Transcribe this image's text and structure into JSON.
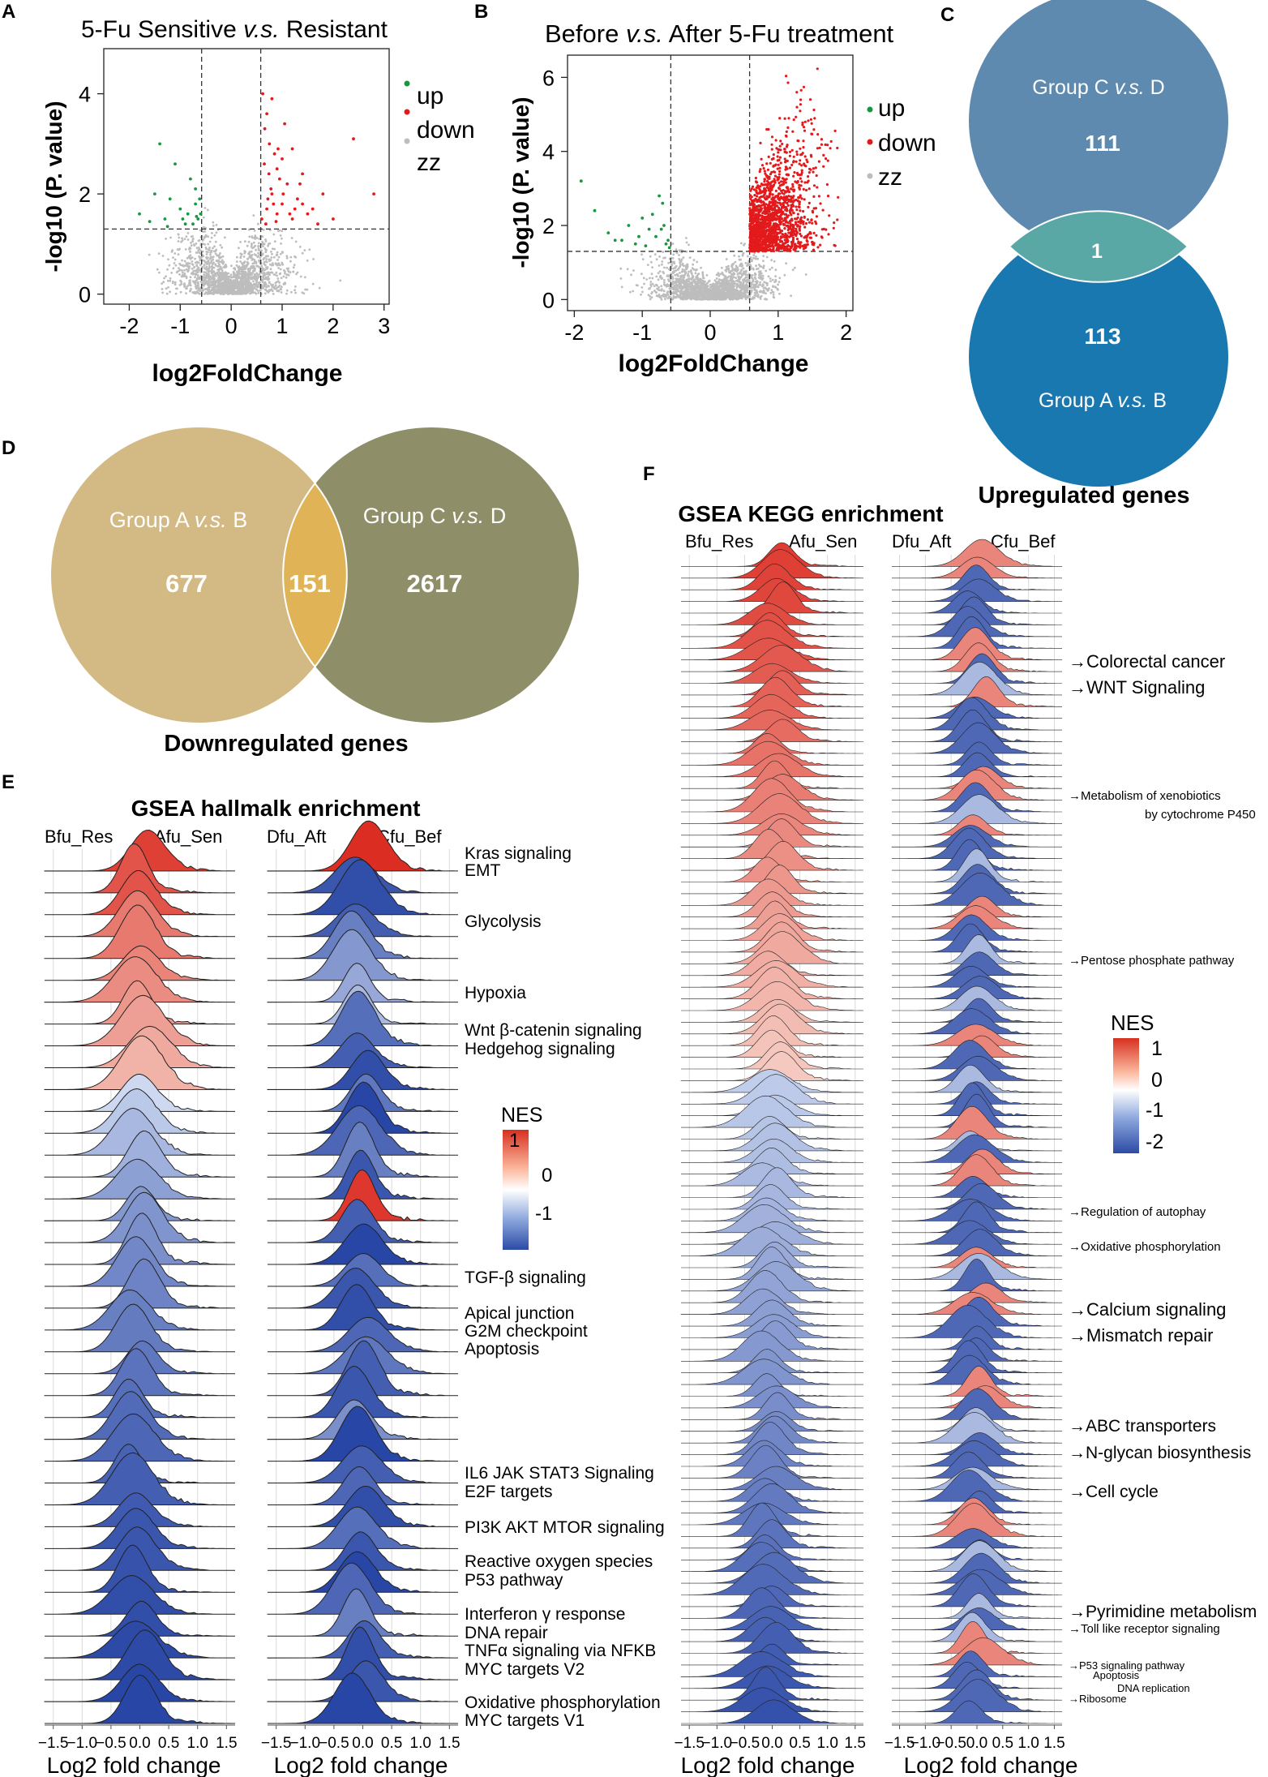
{
  "panel_labels": [
    "A",
    "B",
    "C",
    "D",
    "E",
    "F"
  ],
  "chart_data": [
    {
      "id": "A",
      "type": "scatter",
      "subtype": "volcano",
      "title": "5-Fu  Sensitive v.s. Resistant",
      "title_parts": [
        "5-Fu  Sensitive ",
        "v.s.",
        " Resistant"
      ],
      "xlabel": "log2FoldChange",
      "ylabel": "-log10 (P. value)",
      "xlim": [
        -2.5,
        3.1
      ],
      "ylim": [
        -0.2,
        4.9
      ],
      "xticks": [
        "-2",
        "-1",
        "0",
        "1",
        "2",
        "3"
      ],
      "xtick_values": [
        -2,
        -1,
        0,
        1,
        2,
        3
      ],
      "yticks": [
        "0",
        "2",
        "4"
      ],
      "ytick_values": [
        0,
        2,
        4
      ],
      "fc_thresholds": [
        -0.58,
        0.58
      ],
      "p_threshold": 1.3,
      "legend": [
        {
          "label": "up",
          "color": "#1a9641"
        },
        {
          "label": "down",
          "color": "#e31a1c"
        },
        {
          "label": "zz",
          "color": "#bdbdbd"
        }
      ],
      "series": [
        {
          "name": "up",
          "color": "#1a9641",
          "x": [
            -1.8,
            -1.5,
            -1.3,
            -1.2,
            -1.0,
            -0.9,
            -0.8,
            -0.7,
            -0.65,
            -0.6,
            -1.4,
            -1.1,
            -0.75,
            -0.95,
            -0.62,
            -1.6,
            -0.85,
            -0.7,
            -1.25,
            -0.68
          ],
          "y": [
            1.6,
            2.0,
            1.5,
            1.9,
            1.7,
            1.4,
            2.3,
            1.8,
            1.5,
            1.6,
            3.0,
            2.6,
            1.4,
            1.5,
            1.9,
            1.45,
            1.6,
            2.1,
            1.35,
            1.55
          ]
        },
        {
          "name": "down",
          "color": "#e31a1c",
          "x": [
            0.6,
            0.7,
            0.8,
            0.9,
            1.0,
            1.1,
            1.2,
            1.3,
            1.4,
            1.5,
            0.65,
            0.75,
            0.85,
            0.95,
            1.05,
            1.6,
            1.8,
            2.0,
            0.7,
            0.8,
            0.9,
            1.0,
            1.2,
            1.4,
            0.62,
            0.68,
            0.72,
            0.78,
            0.88,
            1.15,
            1.35,
            1.7,
            2.4,
            2.8,
            0.66,
            0.74,
            0.83,
            0.92,
            1.02,
            1.25
          ],
          "y": [
            1.5,
            1.7,
            2.0,
            1.6,
            1.8,
            2.2,
            1.5,
            1.9,
            2.4,
            1.6,
            2.6,
            3.0,
            2.8,
            2.3,
            3.4,
            1.7,
            2.0,
            1.5,
            3.6,
            3.9,
            2.5,
            2.7,
            2.9,
            1.8,
            4.0,
            1.4,
            1.9,
            2.1,
            1.45,
            1.6,
            2.2,
            1.4,
            3.1,
            2.0,
            3.3,
            2.4,
            1.8,
            2.9,
            2.0,
            1.7
          ]
        },
        {
          "name": "zz",
          "color": "#bdbdbd",
          "count": 1800
        }
      ]
    },
    {
      "id": "B",
      "type": "scatter",
      "subtype": "volcano",
      "title": "Before v.s. After 5-Fu treatment",
      "title_parts": [
        "Before ",
        "v.s.",
        " After 5-Fu treatment"
      ],
      "xlabel": "log2FoldChange",
      "ylabel": "-log10 (P. value)",
      "xlim": [
        -2.1,
        2.1
      ],
      "ylim": [
        -0.3,
        6.6
      ],
      "xticks": [
        "-2",
        "-1",
        "0",
        "1",
        "2"
      ],
      "xtick_values": [
        -2,
        -1,
        0,
        1,
        2
      ],
      "yticks": [
        "0",
        "2",
        "4",
        "6"
      ],
      "ytick_values": [
        0,
        2,
        4,
        6
      ],
      "fc_thresholds": [
        -0.58,
        0.58
      ],
      "p_threshold": 1.3,
      "legend": [
        {
          "label": "up",
          "color": "#1a9641"
        },
        {
          "label": "down",
          "color": "#e31a1c"
        },
        {
          "label": "zz",
          "color": "#bdbdbd"
        }
      ],
      "series": [
        {
          "name": "up",
          "color": "#1a9641",
          "x": [
            -1.9,
            -1.7,
            -1.5,
            -1.3,
            -1.2,
            -1.1,
            -1.0,
            -0.9,
            -0.8,
            -0.7,
            -0.65,
            -0.6,
            -1.4,
            -0.75,
            -0.85,
            -0.95,
            -1.05,
            -0.68,
            -0.62,
            -0.72
          ],
          "y": [
            3.2,
            2.4,
            1.8,
            1.6,
            2.0,
            1.5,
            2.2,
            1.9,
            1.7,
            2.6,
            1.5,
            1.4,
            1.6,
            2.8,
            2.3,
            1.45,
            1.7,
            2.0,
            1.6,
            1.9
          ]
        },
        {
          "name": "down",
          "color": "#e31a1c",
          "count": 1500
        },
        {
          "name": "zz",
          "color": "#bdbdbd",
          "count": 2000
        }
      ]
    },
    {
      "id": "C",
      "type": "venn",
      "title": "Upregulated genes",
      "sets": [
        {
          "label_parts": [
            "Group C ",
            "v.s.",
            " D"
          ],
          "value": "111",
          "color": "#5f8aaf"
        },
        {
          "label_parts": [
            "Group A ",
            "v.s.",
            " B"
          ],
          "value": "113",
          "color": "#1a78b0"
        }
      ],
      "intersection": {
        "value": "1",
        "color": "#5aa8a5"
      }
    },
    {
      "id": "D",
      "type": "venn",
      "title": "Downregulated genes",
      "sets": [
        {
          "label_parts": [
            "Group A ",
            "v.s.",
            " B"
          ],
          "value": "677",
          "color": "#d3b983"
        },
        {
          "label_parts": [
            "Group C ",
            "v.s.",
            " D"
          ],
          "value": "2617",
          "color": "#8e8f68"
        }
      ],
      "intersection": {
        "value": "151",
        "color": "#e0b356"
      }
    },
    {
      "id": "E",
      "type": "ridgeline",
      "title": "GSEA hallmalk enrichment",
      "xlabel": "Log2 fold change",
      "xticks": [
        "−1.5",
        "−1.0",
        "−0.5",
        "0.0",
        "0.5",
        "1.0",
        "1.5"
      ],
      "xtick_values": [
        -1.5,
        -1.0,
        -0.5,
        0.0,
        0.5,
        1.0,
        1.5
      ],
      "columns": [
        {
          "left_label": "Bfu_Res",
          "right_label": "Afu_Sen",
          "nes": [
            0.9,
            0.8,
            0.8,
            0.6,
            0.6,
            0.55,
            0.5,
            0.45,
            0.4,
            0.35,
            0.3,
            -0.1,
            -0.3,
            -0.5,
            -0.6,
            -0.8,
            -0.9,
            -0.95,
            -1.0,
            -1.1,
            -1.15,
            -1.2,
            -1.25,
            -1.3,
            -1.35,
            -1.4,
            -1.45,
            -1.5,
            -1.55,
            -1.6,
            -1.65,
            -1.7,
            -1.7,
            -1.75,
            -1.8,
            -1.8,
            -1.85,
            -1.85,
            -1.9,
            -1.9
          ]
        },
        {
          "left_label": "Dfu_Aft",
          "right_label": "Cfu_Bef",
          "nes": [
            1.0,
            -1.7,
            -1.8,
            -1.6,
            -1.2,
            -0.9,
            -0.7,
            -0.5,
            -1.4,
            -1.6,
            -1.8,
            -1.3,
            -1.9,
            -1.5,
            -1.2,
            -1.7,
            0.95,
            -1.6,
            -1.9,
            -1.4,
            -1.7,
            -1.8,
            -1.5,
            -1.3,
            -1.6,
            -1.7,
            -1.0,
            -1.9,
            -1.6,
            -1.5,
            -1.8,
            -1.4,
            -1.7,
            -1.9,
            -1.5,
            -1.2,
            -1.6,
            -1.8,
            -1.7,
            -1.9
          ]
        }
      ],
      "pathways": [
        "Kras signaling",
        "EMT",
        "Glycolysis",
        "Hypoxia",
        "Wnt β-catenin signaling",
        "Hedgehog signaling",
        "TGF-β signaling",
        "Apical junction",
        "G2M checkpoint",
        "Apoptosis",
        "IL6 JAK STAT3 Signaling",
        "E2F targets",
        "PI3K AKT MTOR signaling",
        "Reactive oxygen species",
        "P53 pathway",
        "Interferon γ response",
        "DNA repair",
        "TNFα signaling via NFKB",
        "MYC targets V2",
        "Oxidative phosphorylation",
        "MYC targets V1"
      ],
      "legend": {
        "title": "NES",
        "ticks": [
          "1",
          "0",
          "-1"
        ],
        "tick_values": [
          1,
          0,
          -1
        ],
        "range": [
          -1.9,
          1.0
        ]
      }
    },
    {
      "id": "F",
      "type": "ridgeline",
      "title": "GSEA KEGG enrichment",
      "xlabel": "Log2 fold change",
      "xticks": [
        "−1.5",
        "−1.0",
        "−0.5",
        "0.0",
        "0.5",
        "1.0",
        "1.5"
      ],
      "xtick_values": [
        -1.5,
        -1.0,
        -0.5,
        0.0,
        0.5,
        1.0,
        1.5
      ],
      "columns": [
        {
          "left_label": "Bfu_Res",
          "right_label": "Afu_Sen",
          "row_count": 100
        },
        {
          "left_label": "Dfu_Aft",
          "right_label": "Cfu_Bef",
          "row_count": 100
        }
      ],
      "pathways": [
        "Colorectal cancer",
        "WNT Signaling",
        "Metabolism of xenobiotics",
        "by cytochrome P450",
        "Pentose phosphate pathway",
        "Regulation of autophay",
        "Oxidative phosphorylation",
        "Calcium signaling",
        "Mismatch repair",
        "ABC transporters",
        "N-glycan biosynthesis",
        "Cell cycle",
        "Pyrimidine metabolism",
        "Toll like receptor signaling",
        "P53 signaling pathway",
        "Apoptosis",
        "DNA replication",
        "Ribosome"
      ],
      "legend": {
        "title": "NES",
        "ticks": [
          "1",
          "0",
          "-1",
          "-2"
        ],
        "tick_values": [
          1,
          0,
          -1,
          -2
        ],
        "range": [
          -2.3,
          1.3
        ]
      }
    }
  ]
}
